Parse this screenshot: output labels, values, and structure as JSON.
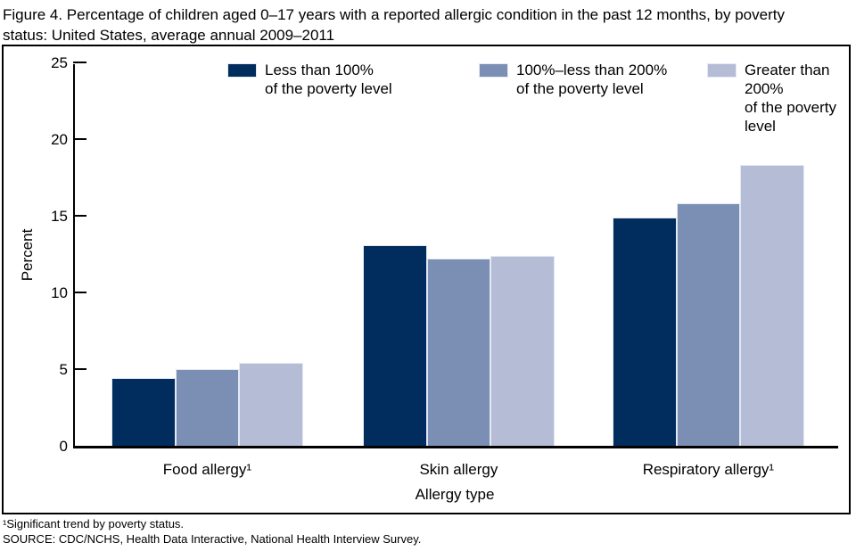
{
  "header": {
    "title_line1": "Figure 4. Percentage of children aged 0–17 years with a reported allergic condition in the past 12 months, by poverty",
    "title_line2": "status: United States, average annual 2009–2011"
  },
  "chart_data": {
    "type": "bar",
    "title": "Figure 4. Percentage of children aged 0–17 years with a reported allergic condition in the past 12 months, by poverty status: United States, average annual 2009–2011",
    "categories": [
      "Food allergy¹",
      "Skin allergy",
      "Respiratory allergy¹"
    ],
    "series": [
      {
        "name": "Less than 100% of the poverty level",
        "label_lines": [
          "Less than 100%",
          "of the poverty level"
        ],
        "color": "#002d5e",
        "values": [
          4.4,
          13.1,
          14.9
        ]
      },
      {
        "name": "100%–less than 200% of the poverty level",
        "label_lines": [
          "100%–less than 200%",
          "of the poverty level"
        ],
        "color": "#7b8eb4",
        "values": [
          5.0,
          12.2,
          15.8
        ]
      },
      {
        "name": "Greater than 200% of the poverty level",
        "label_lines": [
          "Greater than 200%",
          "of the poverty level"
        ],
        "color": "#b5bcd6",
        "values": [
          5.4,
          12.4,
          18.3
        ]
      }
    ],
    "xlabel": "Allergy type",
    "ylabel": "Percent",
    "ylim": [
      0,
      25
    ],
    "yticks": [
      0,
      5,
      10,
      15,
      20,
      25
    ],
    "legend_position": "top-inside",
    "grid": false
  },
  "footnotes": {
    "note1": "¹Significant trend by poverty status.",
    "note2": "SOURCE: CDC/NCHS, Health Data Interactive, National Health Interview Survey."
  }
}
